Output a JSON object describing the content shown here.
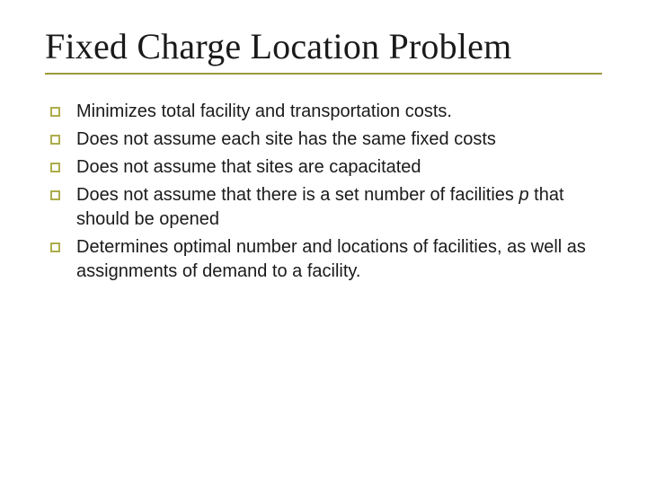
{
  "slide": {
    "title": "Fixed Charge Location Problem",
    "title_fontfamily": "Times New Roman",
    "title_fontsize": 40,
    "title_color": "#1a1a1a",
    "title_underline_color": "#9a9a3c",
    "body_fontfamily": "Verdana",
    "body_fontsize": 20,
    "body_color": "#1a1a1a",
    "bullet_marker_color": "#acad4c",
    "bullet_marker_size": 11,
    "background_color": "#ffffff",
    "bullets": [
      {
        "text": "Minimizes total facility and transportation costs."
      },
      {
        "text": "Does not assume each site has the same fixed costs"
      },
      {
        "text": "Does not assume that sites are capacitated"
      },
      {
        "text_pre": "Does not assume that there is a set number of facilities ",
        "text_italic": "p",
        "text_post": " that should be opened"
      },
      {
        "text": "Determines optimal number and locations of facilities, as well as assignments of demand to a facility."
      }
    ]
  }
}
